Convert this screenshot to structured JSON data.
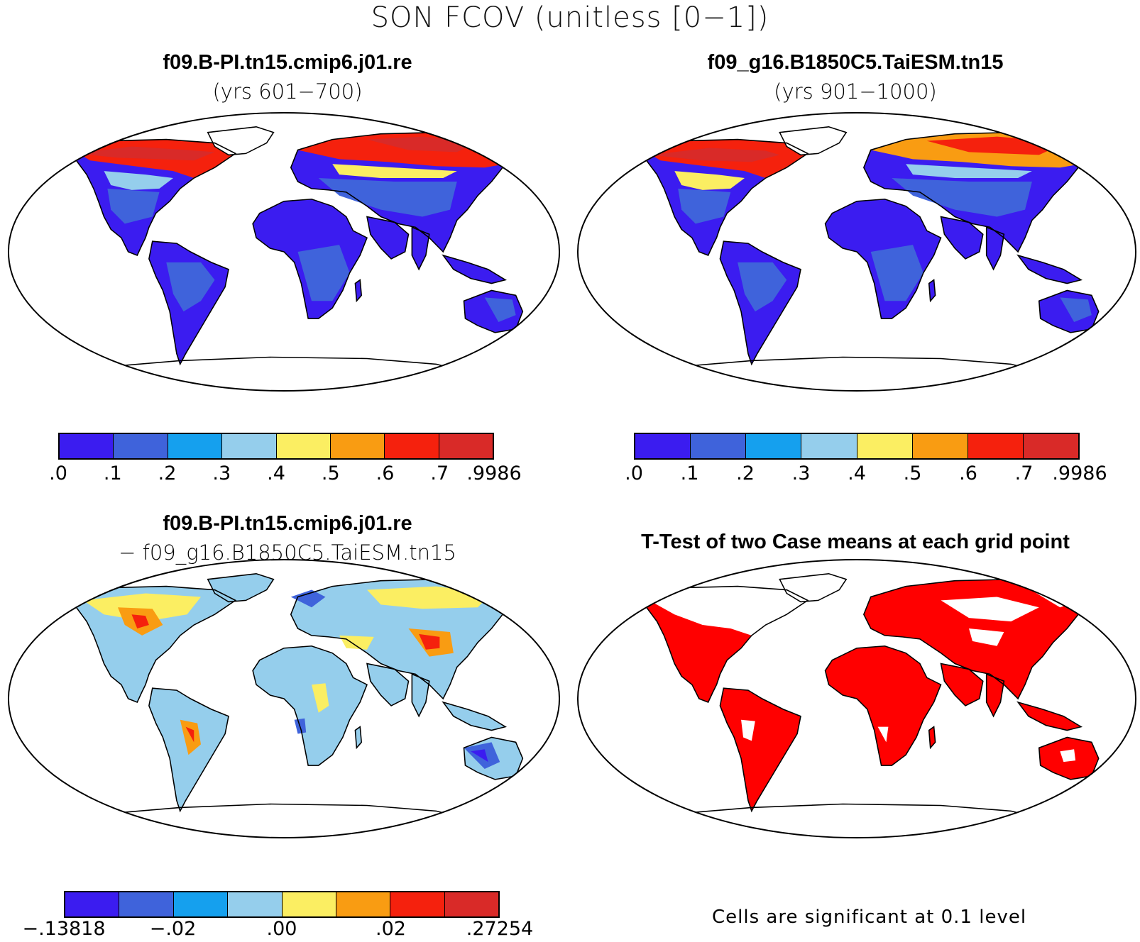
{
  "figure_title": "SON FCOV (unitless [0−1])",
  "panels": [
    {
      "title": "f09.B-PI.tn15.cmip6.j01.re",
      "subtitle": "(yrs 601−700)"
    },
    {
      "title": "f09_g16.B1850C5.TaiESM.tn15",
      "subtitle": "(yrs 901−1000)"
    },
    {
      "title": "f09.B-PI.tn15.cmip6.j01.re",
      "subtitle": "− f09_g16.B1850C5.TaiESM.tn15"
    },
    {
      "title": "T-Test of two Case means at each grid point",
      "subtitle": ""
    }
  ],
  "colorbars": {
    "mean": {
      "colors": [
        "#3b1cf0",
        "#3f63db",
        "#15a0ee",
        "#95ceec",
        "#fbee62",
        "#f99c12",
        "#f5210d",
        "#d92a28"
      ],
      "labels": [
        ".0",
        ".1",
        ".2",
        ".3",
        ".4",
        ".5",
        ".6",
        ".7",
        ".9986"
      ]
    },
    "diff": {
      "colors": [
        "#3b1cf0",
        "#3f63db",
        "#15a0ee",
        "#95ceec",
        "#fbee62",
        "#f99c12",
        "#f5210d",
        "#d92a28"
      ],
      "labels": [
        "−.13818",
        "−.02",
        ".00",
        ".02",
        ".27254"
      ]
    }
  },
  "significance_note": "Cells are significant at 0.1 level",
  "significance_color": "#ff0000"
}
